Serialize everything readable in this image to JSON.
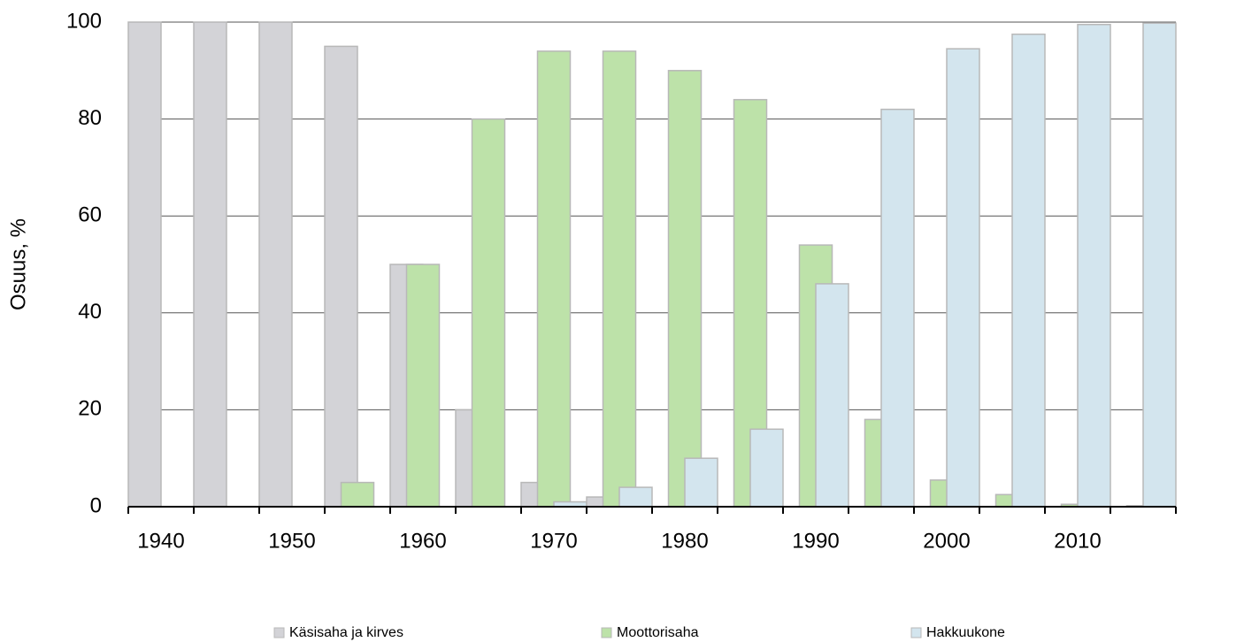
{
  "chart_data": {
    "type": "bar",
    "y_label": "Osuus, %",
    "categories": [
      "1940",
      null,
      "1950",
      null,
      "1960",
      null,
      "1970",
      null,
      "1980",
      null,
      "1990",
      null,
      "2000",
      null,
      "2010",
      null
    ],
    "series": [
      {
        "name": "Käsisaha ja kirves",
        "color": "#d3d3d7",
        "values": [
          100,
          100,
          100,
          95,
          50,
          20,
          5,
          2,
          0,
          0,
          0,
          0,
          0,
          0,
          0,
          0
        ]
      },
      {
        "name": "Moottorisaha",
        "color": "#bde2a9",
        "values": [
          0,
          0,
          0,
          5,
          50,
          80,
          94,
          94,
          90,
          84,
          54,
          18,
          5.5,
          2.5,
          0.5,
          0.2
        ]
      },
      {
        "name": "Hakkuukone",
        "color": "#d3e5ee",
        "values": [
          0,
          0,
          0,
          0,
          0,
          0,
          1,
          4,
          10,
          16,
          46,
          82,
          94.5,
          97.5,
          99.5,
          99.8
        ]
      }
    ],
    "ylim": [
      0,
      100
    ],
    "yticks": [
      0,
      20,
      40,
      60,
      80,
      100
    ],
    "grid": true
  }
}
